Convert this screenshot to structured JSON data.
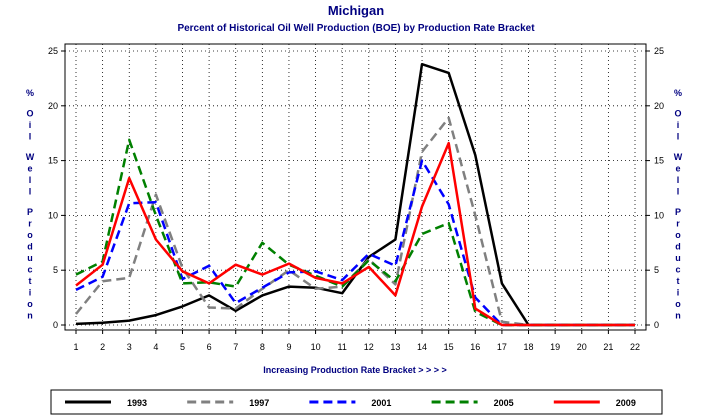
{
  "chart_data": {
    "type": "line",
    "title": "Michigan",
    "subtitle": "Percent of Historical Oil Well Production (BOE) by Production Rate Bracket",
    "xlabel": "Increasing Production Rate Bracket > > > >",
    "ylabel": "% Oil Well Production",
    "ylabel_chars": [
      "%",
      "O",
      "i",
      "l",
      "W",
      "e",
      "l",
      "l",
      "P",
      "r",
      "o",
      "d",
      "u",
      "c",
      "t",
      "i",
      "o",
      "n"
    ],
    "x": [
      1,
      2,
      3,
      4,
      5,
      6,
      7,
      8,
      9,
      10,
      11,
      12,
      13,
      14,
      15,
      16,
      17,
      18,
      19,
      20,
      21,
      22
    ],
    "xlim": [
      1,
      22
    ],
    "ylim": [
      0,
      25
    ],
    "yticks": [
      0,
      5,
      10,
      15,
      20,
      25
    ],
    "grid": true,
    "legend_position": "bottom",
    "series": [
      {
        "name": "1993",
        "color": "#000000",
        "dash": "solid",
        "values": [
          0.1,
          0.2,
          0.4,
          0.9,
          1.7,
          2.7,
          1.3,
          2.7,
          3.5,
          3.4,
          2.9,
          6.2,
          7.8,
          23.8,
          23.0,
          15.5,
          3.8,
          0.0,
          0.0,
          0.0,
          0.0,
          0.0
        ]
      },
      {
        "name": "1997",
        "color": "#808080",
        "dash": "long",
        "values": [
          1.0,
          4.0,
          4.3,
          11.9,
          5.2,
          1.6,
          1.5,
          3.3,
          5.0,
          3.3,
          3.5,
          6.0,
          3.7,
          15.8,
          18.9,
          10.0,
          0.3,
          0.0,
          0.0,
          0.0,
          0.0,
          0.0
        ]
      },
      {
        "name": "2001",
        "color": "#0000ff",
        "dash": "long",
        "values": [
          3.2,
          4.4,
          11.1,
          11.2,
          4.2,
          5.4,
          2.0,
          3.4,
          4.8,
          4.9,
          4.1,
          6.5,
          5.4,
          15.0,
          11.0,
          2.5,
          0.0,
          0.0,
          0.0,
          0.0,
          0.0,
          0.0
        ]
      },
      {
        "name": "2005",
        "color": "#008000",
        "dash": "long",
        "values": [
          4.6,
          5.8,
          16.9,
          10.0,
          3.8,
          3.9,
          3.5,
          7.5,
          5.5,
          4.5,
          3.5,
          5.9,
          4.0,
          8.3,
          9.3,
          1.2,
          0.0,
          0.0,
          0.0,
          0.0,
          0.0,
          0.0
        ]
      },
      {
        "name": "2009",
        "color": "#ff0000",
        "dash": "solid",
        "values": [
          3.6,
          5.5,
          13.4,
          7.8,
          4.9,
          3.8,
          5.5,
          4.6,
          5.6,
          4.3,
          3.8,
          5.3,
          2.7,
          10.8,
          16.6,
          1.5,
          0.0,
          0.0,
          0.0,
          0.0,
          0.0,
          0.0
        ]
      }
    ]
  }
}
